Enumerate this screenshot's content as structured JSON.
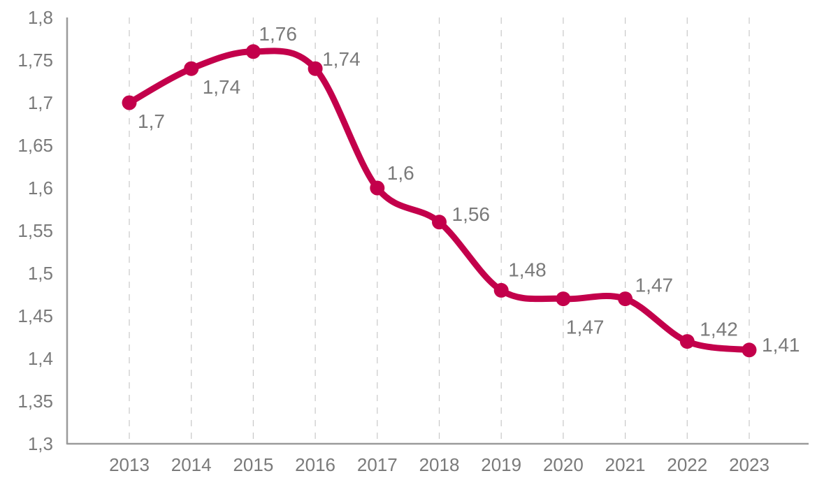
{
  "chart_data": {
    "type": "line",
    "title": "",
    "xlabel": "",
    "ylabel": "",
    "categories": [
      "2013",
      "2014",
      "2015",
      "2016",
      "2017",
      "2018",
      "2019",
      "2020",
      "2021",
      "2022",
      "2023"
    ],
    "series": [
      {
        "name": "",
        "values": [
          1.7,
          1.74,
          1.76,
          1.74,
          1.6,
          1.56,
          1.48,
          1.47,
          1.47,
          1.42,
          1.41
        ],
        "labels": [
          "1,7",
          "1,74",
          "1,76",
          "1,74",
          "1,6",
          "1,56",
          "1,48",
          "1,47",
          "1,47",
          "1,42",
          "1,41"
        ],
        "color": "#c3004b"
      }
    ],
    "ylim": [
      1.3,
      1.8
    ],
    "yticks": [
      1.3,
      1.35,
      1.4,
      1.45,
      1.5,
      1.55,
      1.6,
      1.65,
      1.7,
      1.75,
      1.8
    ],
    "ytick_labels": [
      "1,3",
      "1,35",
      "1,4",
      "1,45",
      "1,5",
      "1,55",
      "1,6",
      "1,65",
      "1,7",
      "1,75",
      "1,8"
    ],
    "grid": "vertical-dashed",
    "legend": "none",
    "smooth": true
  }
}
